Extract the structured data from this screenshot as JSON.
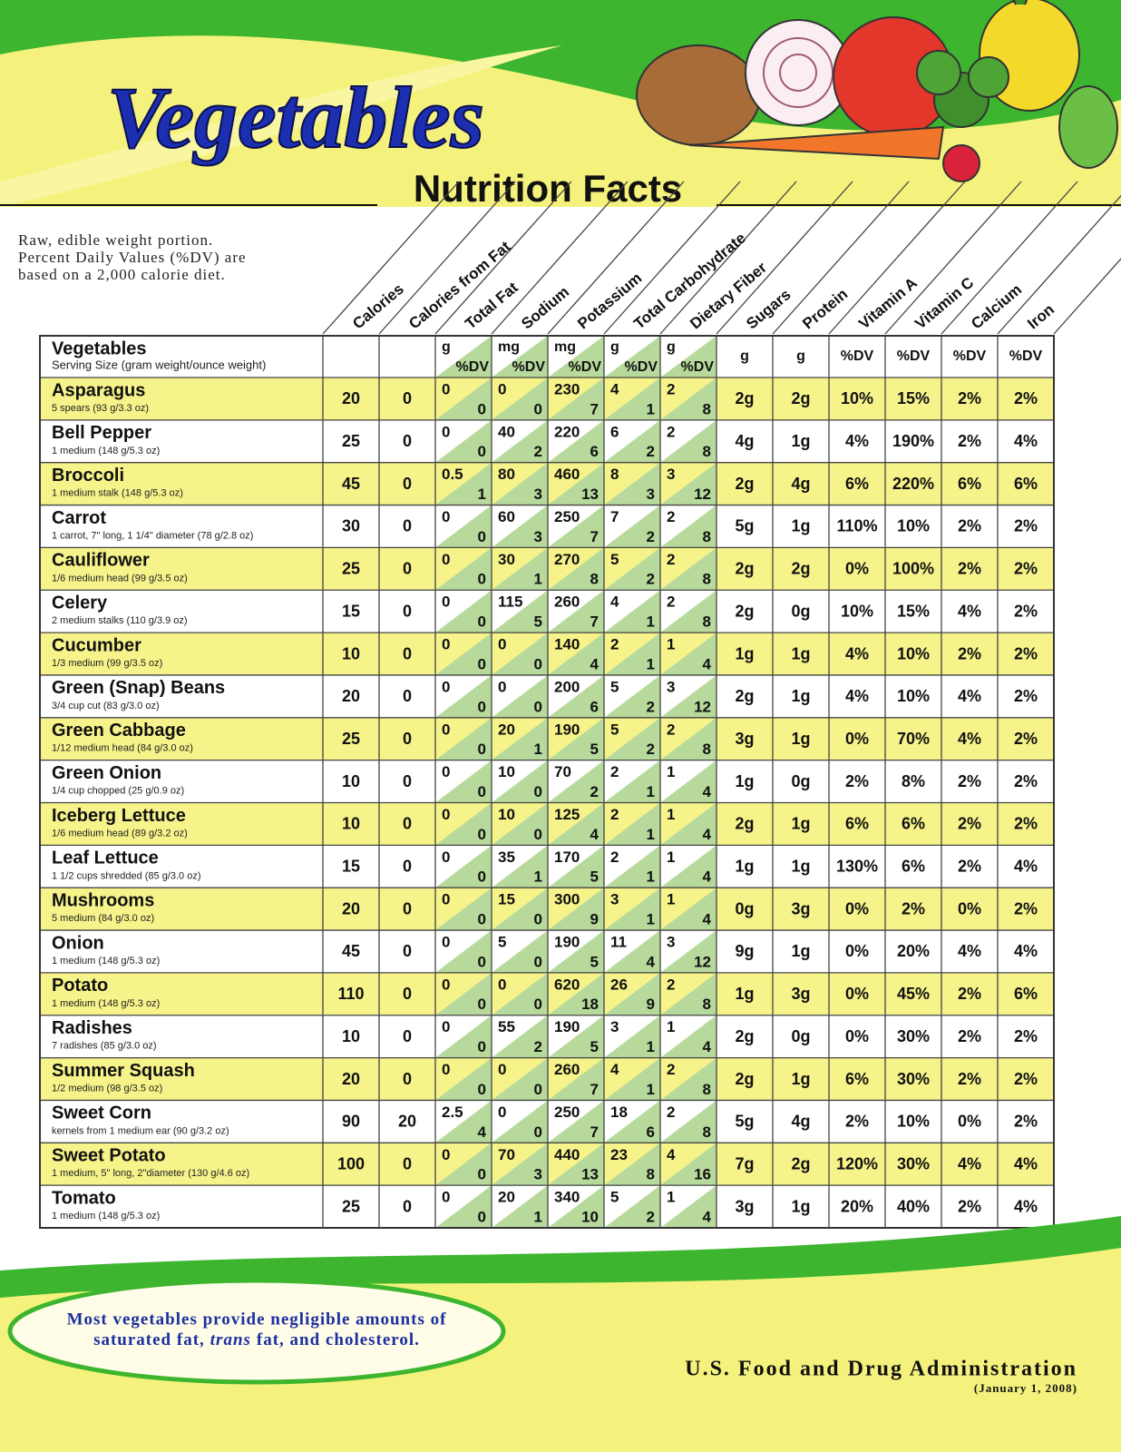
{
  "header": {
    "title": "Vegetables",
    "subtitle": "Nutrition Facts"
  },
  "note": [
    "Raw, edible weight portion.",
    "Percent Daily Values (%DV) are",
    "based on a 2,000 calorie diet."
  ],
  "columns": [
    "Calories",
    "Calories from Fat",
    "Total Fat",
    "Sodium",
    "Potassium",
    "Total Carbohydrate",
    "Dietary Fiber",
    "Sugars",
    "Protein",
    "Vitamin A",
    "Vitamin C",
    "Calcium",
    "Iron"
  ],
  "table": {
    "header": {
      "name": "Vegetables",
      "serving": "Serving Size (gram weight/ounce weight)",
      "units": [
        {
          "amount": "g",
          "dv": "%DV"
        },
        {
          "amount": "mg",
          "dv": "%DV"
        },
        {
          "amount": "mg",
          "dv": "%DV"
        },
        {
          "amount": "g",
          "dv": "%DV"
        },
        {
          "amount": "g",
          "dv": "%DV"
        },
        "g",
        "g",
        "%DV",
        "%DV",
        "%DV",
        "%DV"
      ]
    },
    "rows": [
      {
        "name": "Asparagus",
        "serving": "5 spears (93 g/3.3 oz)",
        "cells": [
          20,
          0,
          [
            0,
            0
          ],
          [
            0,
            0
          ],
          [
            230,
            7
          ],
          [
            4,
            1
          ],
          [
            2,
            8
          ],
          "2g",
          "2g",
          "10%",
          "15%",
          "2%",
          "2%"
        ]
      },
      {
        "name": "Bell Pepper",
        "serving": "1 medium (148 g/5.3 oz)",
        "cells": [
          25,
          0,
          [
            0,
            0
          ],
          [
            40,
            2
          ],
          [
            220,
            6
          ],
          [
            6,
            2
          ],
          [
            2,
            8
          ],
          "4g",
          "1g",
          "4%",
          "190%",
          "2%",
          "4%"
        ]
      },
      {
        "name": "Broccoli",
        "serving": "1 medium stalk (148 g/5.3 oz)",
        "cells": [
          45,
          0,
          [
            0.5,
            1
          ],
          [
            80,
            3
          ],
          [
            460,
            13
          ],
          [
            8,
            3
          ],
          [
            3,
            12
          ],
          "2g",
          "4g",
          "6%",
          "220%",
          "6%",
          "6%"
        ]
      },
      {
        "name": "Carrot",
        "serving": "1 carrot, 7\" long, 1 1/4\" diameter (78 g/2.8 oz)",
        "cells": [
          30,
          0,
          [
            0,
            0
          ],
          [
            60,
            3
          ],
          [
            250,
            7
          ],
          [
            7,
            2
          ],
          [
            2,
            8
          ],
          "5g",
          "1g",
          "110%",
          "10%",
          "2%",
          "2%"
        ]
      },
      {
        "name": "Cauliflower",
        "serving": "1/6 medium head (99 g/3.5 oz)",
        "cells": [
          25,
          0,
          [
            0,
            0
          ],
          [
            30,
            1
          ],
          [
            270,
            8
          ],
          [
            5,
            2
          ],
          [
            2,
            8
          ],
          "2g",
          "2g",
          "0%",
          "100%",
          "2%",
          "2%"
        ]
      },
      {
        "name": "Celery",
        "serving": "2 medium stalks (110 g/3.9 oz)",
        "cells": [
          15,
          0,
          [
            0,
            0
          ],
          [
            115,
            5
          ],
          [
            260,
            7
          ],
          [
            4,
            1
          ],
          [
            2,
            8
          ],
          "2g",
          "0g",
          "10%",
          "15%",
          "4%",
          "2%"
        ]
      },
      {
        "name": "Cucumber",
        "serving": "1/3 medium (99 g/3.5 oz)",
        "cells": [
          10,
          0,
          [
            0,
            0
          ],
          [
            0,
            0
          ],
          [
            140,
            4
          ],
          [
            2,
            1
          ],
          [
            1,
            4
          ],
          "1g",
          "1g",
          "4%",
          "10%",
          "2%",
          "2%"
        ]
      },
      {
        "name": "Green (Snap) Beans",
        "serving": "3/4 cup cut (83 g/3.0 oz)",
        "cells": [
          20,
          0,
          [
            0,
            0
          ],
          [
            0,
            0
          ],
          [
            200,
            6
          ],
          [
            5,
            2
          ],
          [
            3,
            12
          ],
          "2g",
          "1g",
          "4%",
          "10%",
          "4%",
          "2%"
        ]
      },
      {
        "name": "Green Cabbage",
        "serving": "1/12 medium head (84 g/3.0 oz)",
        "cells": [
          25,
          0,
          [
            0,
            0
          ],
          [
            20,
            1
          ],
          [
            190,
            5
          ],
          [
            5,
            2
          ],
          [
            2,
            8
          ],
          "3g",
          "1g",
          "0%",
          "70%",
          "4%",
          "2%"
        ]
      },
      {
        "name": "Green Onion",
        "serving": "1/4 cup chopped (25 g/0.9 oz)",
        "cells": [
          10,
          0,
          [
            0,
            0
          ],
          [
            10,
            0
          ],
          [
            70,
            2
          ],
          [
            2,
            1
          ],
          [
            1,
            4
          ],
          "1g",
          "0g",
          "2%",
          "8%",
          "2%",
          "2%"
        ]
      },
      {
        "name": "Iceberg Lettuce",
        "serving": "1/6 medium head (89 g/3.2 oz)",
        "cells": [
          10,
          0,
          [
            0,
            0
          ],
          [
            10,
            0
          ],
          [
            125,
            4
          ],
          [
            2,
            1
          ],
          [
            1,
            4
          ],
          "2g",
          "1g",
          "6%",
          "6%",
          "2%",
          "2%"
        ]
      },
      {
        "name": "Leaf Lettuce",
        "serving": "1 1/2 cups shredded (85 g/3.0 oz)",
        "cells": [
          15,
          0,
          [
            0,
            0
          ],
          [
            35,
            1
          ],
          [
            170,
            5
          ],
          [
            2,
            1
          ],
          [
            1,
            4
          ],
          "1g",
          "1g",
          "130%",
          "6%",
          "2%",
          "4%"
        ]
      },
      {
        "name": "Mushrooms",
        "serving": "5 medium (84 g/3.0 oz)",
        "cells": [
          20,
          0,
          [
            0,
            0
          ],
          [
            15,
            0
          ],
          [
            300,
            9
          ],
          [
            3,
            1
          ],
          [
            1,
            4
          ],
          "0g",
          "3g",
          "0%",
          "2%",
          "0%",
          "2%"
        ]
      },
      {
        "name": "Onion",
        "serving": "1 medium (148 g/5.3 oz)",
        "cells": [
          45,
          0,
          [
            0,
            0
          ],
          [
            5,
            0
          ],
          [
            190,
            5
          ],
          [
            11,
            4
          ],
          [
            3,
            12
          ],
          "9g",
          "1g",
          "0%",
          "20%",
          "4%",
          "4%"
        ]
      },
      {
        "name": "Potato",
        "serving": "1 medium (148 g/5.3 oz)",
        "cells": [
          110,
          0,
          [
            0,
            0
          ],
          [
            0,
            0
          ],
          [
            620,
            18
          ],
          [
            26,
            9
          ],
          [
            2,
            8
          ],
          "1g",
          "3g",
          "0%",
          "45%",
          "2%",
          "6%"
        ]
      },
      {
        "name": "Radishes",
        "serving": "7 radishes (85 g/3.0 oz)",
        "cells": [
          10,
          0,
          [
            0,
            0
          ],
          [
            55,
            2
          ],
          [
            190,
            5
          ],
          [
            3,
            1
          ],
          [
            1,
            4
          ],
          "2g",
          "0g",
          "0%",
          "30%",
          "2%",
          "2%"
        ]
      },
      {
        "name": "Summer Squash",
        "serving": "1/2 medium (98 g/3.5 oz)",
        "cells": [
          20,
          0,
          [
            0,
            0
          ],
          [
            0,
            0
          ],
          [
            260,
            7
          ],
          [
            4,
            1
          ],
          [
            2,
            8
          ],
          "2g",
          "1g",
          "6%",
          "30%",
          "2%",
          "2%"
        ]
      },
      {
        "name": "Sweet Corn",
        "serving": "kernels from 1 medium ear (90 g/3.2 oz)",
        "cells": [
          90,
          20,
          [
            2.5,
            4
          ],
          [
            0,
            0
          ],
          [
            250,
            7
          ],
          [
            18,
            6
          ],
          [
            2,
            8
          ],
          "5g",
          "4g",
          "2%",
          "10%",
          "0%",
          "2%"
        ]
      },
      {
        "name": "Sweet Potato",
        "serving": "1 medium, 5\" long, 2\"diameter (130 g/4.6 oz)",
        "cells": [
          100,
          0,
          [
            0,
            0
          ],
          [
            70,
            3
          ],
          [
            440,
            13
          ],
          [
            23,
            8
          ],
          [
            4,
            16
          ],
          "7g",
          "2g",
          "120%",
          "30%",
          "4%",
          "4%"
        ]
      },
      {
        "name": "Tomato",
        "serving": "1 medium (148 g/5.3 oz)",
        "cells": [
          25,
          0,
          [
            0,
            0
          ],
          [
            20,
            1
          ],
          [
            340,
            10
          ],
          [
            5,
            2
          ],
          [
            1,
            4
          ],
          "3g",
          "1g",
          "20%",
          "40%",
          "2%",
          "4%"
        ]
      }
    ]
  },
  "footer": {
    "note": [
      "Most vegetables provide negligible amounts of",
      "saturated fat,",
      "trans",
      "fat, and cholesterol."
    ],
    "agency": "U.S. Food and Drug Administration",
    "date": "(January 1, 2008)"
  }
}
